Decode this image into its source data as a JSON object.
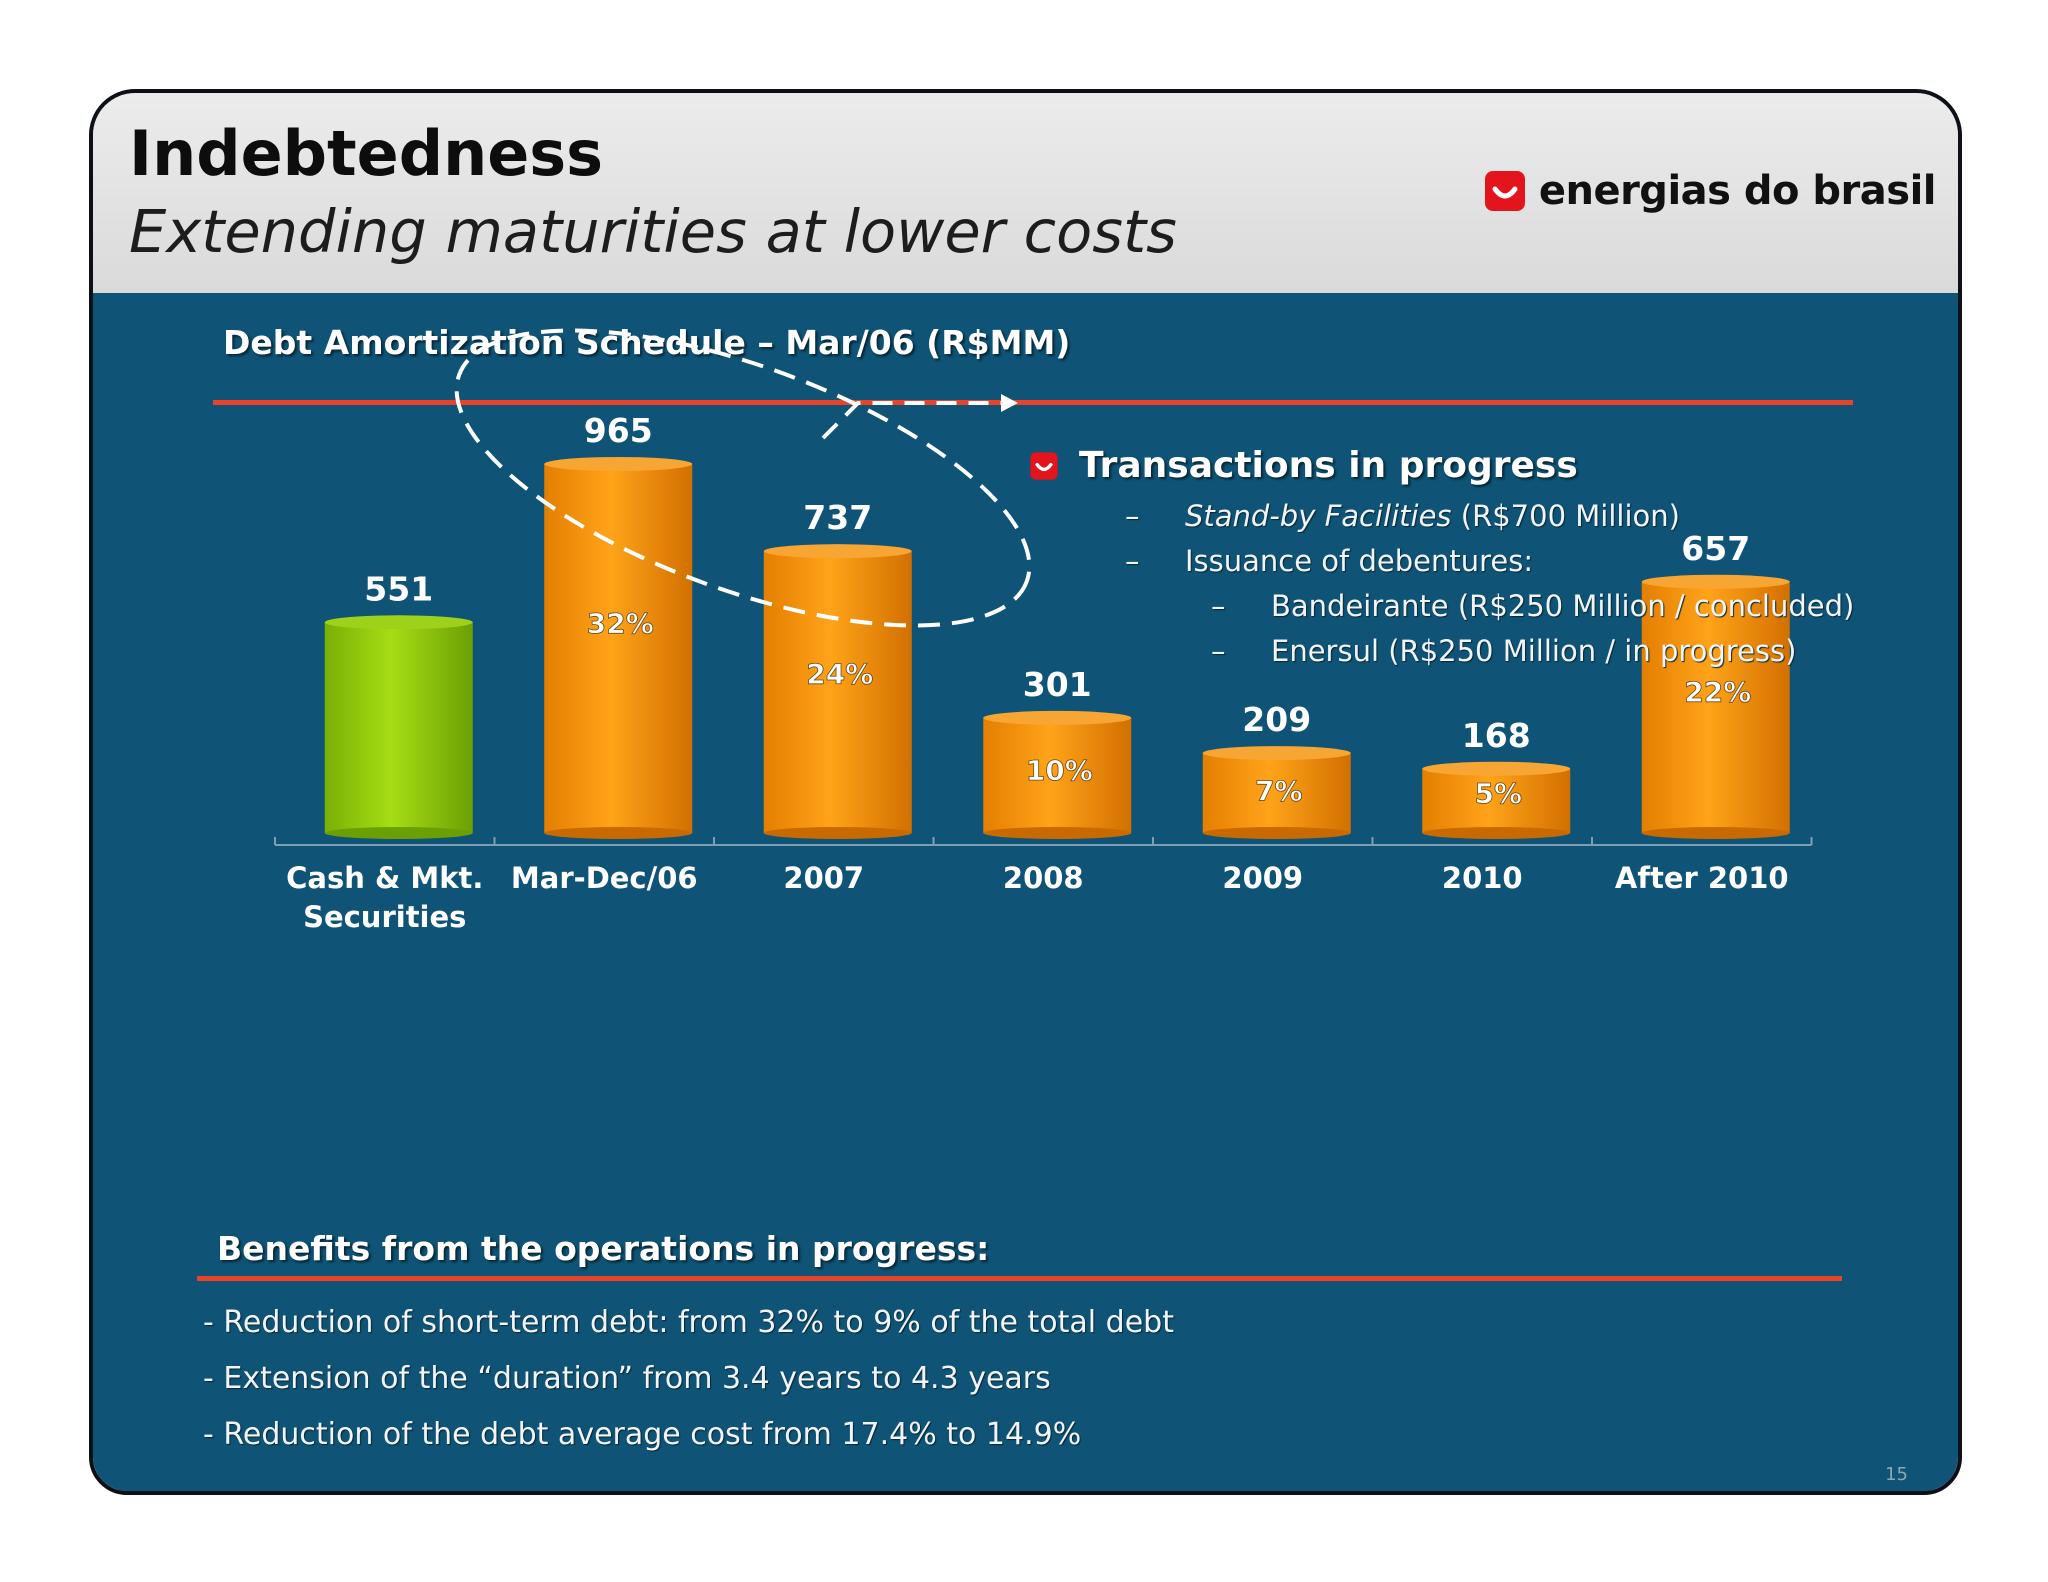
{
  "header": {
    "title": "Indebtedness",
    "subtitle": "Extending maturities at lower costs",
    "logo_text": "energias do brasil",
    "logo_icon": "smile-square-icon"
  },
  "section_title": "Debt Amortization Schedule – Mar/06 (R$MM)",
  "transactions": {
    "title": "Transactions in progress",
    "bullet_icon": "smile-square-icon",
    "items": [
      {
        "dash": "–",
        "italic": "Stand-by Facilities",
        "text": " (R$700 Million)"
      },
      {
        "dash": "–",
        "text": "Issuance of debentures:"
      }
    ],
    "subitems": [
      {
        "dash": "–",
        "text": "Bandeirante (R$250 Million / concluded)"
      },
      {
        "dash": "–",
        "text": "Enersul (R$250 Million / in progress)"
      }
    ]
  },
  "chart_data": {
    "type": "bar",
    "categories": [
      "Cash & Mkt. Securities",
      "Mar-Dec/06",
      "2007",
      "2008",
      "2009",
      "2010",
      "After 2010"
    ],
    "category_lines": [
      [
        "Cash & Mkt.",
        "Securities"
      ],
      [
        "Mar-Dec/06"
      ],
      [
        "2007"
      ],
      [
        "2008"
      ],
      [
        "2009"
      ],
      [
        "2010"
      ],
      [
        "After 2010"
      ]
    ],
    "values": [
      551,
      965,
      737,
      301,
      209,
      168,
      657
    ],
    "value_labels": [
      "551",
      "965",
      "737",
      "301",
      "209",
      "168",
      "657"
    ],
    "share_labels": [
      "",
      "32%",
      "24%",
      "10%",
      "7%",
      "5%",
      "22%"
    ],
    "bar_colors": [
      "#8cc410",
      "#f08c00",
      "#f08c00",
      "#f08c00",
      "#f08c00",
      "#f08c00",
      "#f08c00"
    ],
    "ylim": [
      0,
      1000
    ],
    "grid": false,
    "legend": "none",
    "annotation": "dashed ellipse around Mar-Dec/06 and 2007 with arrow to transactions"
  },
  "benefits": {
    "title": "Benefits from the operations in progress:",
    "items": [
      "- Reduction of short-term debt: from 32% to 9% of the total debt",
      "- Extension of the “duration” from 3.4 years to 4.3 years",
      "- Reduction of the debt average cost from 17.4% to 14.9%"
    ]
  },
  "page_number": "15",
  "colors": {
    "background": "#0f5376",
    "accent": "#e8432a",
    "logo_red": "#e3141b",
    "cash_bar": "#8cc410",
    "debt_bar": "#f08c00"
  }
}
